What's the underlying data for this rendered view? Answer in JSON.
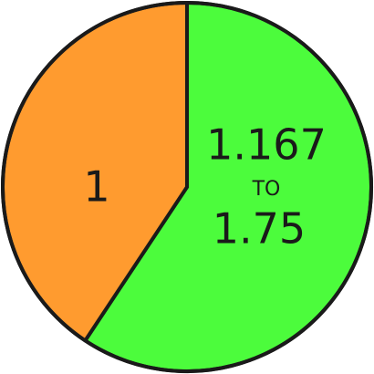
{
  "chart_data": {
    "type": "pie",
    "slices": [
      {
        "label_lines": [
          "1.167",
          "TO",
          "1.75"
        ],
        "value": 1.458,
        "color": "#4cfc3c"
      },
      {
        "label_lines": [
          "1"
        ],
        "value": 1,
        "color": "#ff9b2f"
      }
    ]
  }
}
